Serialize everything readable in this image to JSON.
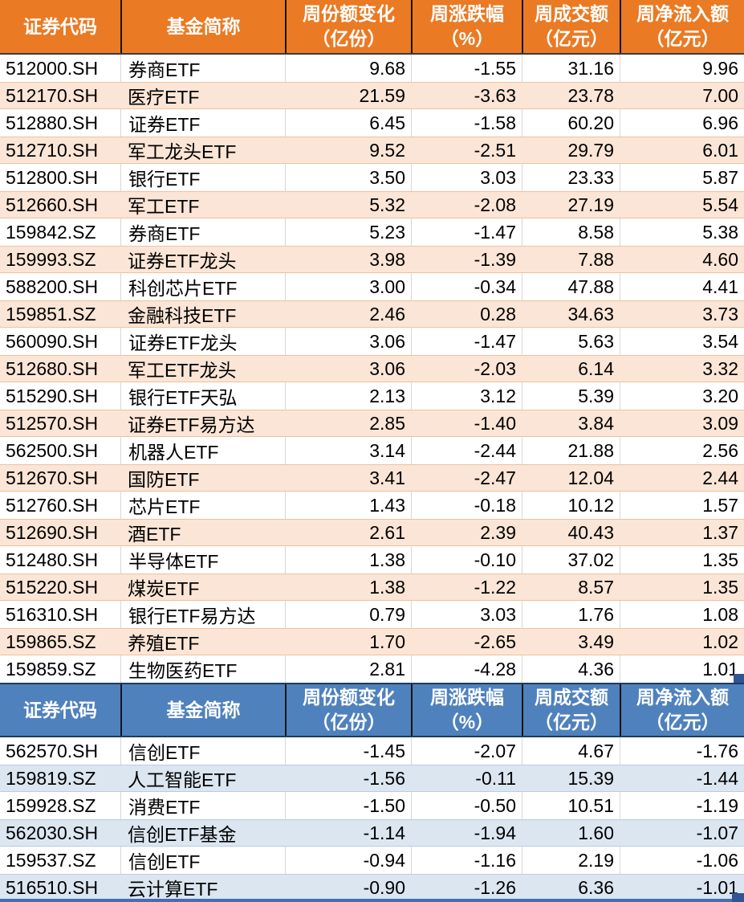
{
  "theme": {
    "orange_header_bg": "#EA7A23",
    "orange_stripe_bg": "#FBE5D6",
    "orange_line": "#F0C29A",
    "blue_header_bg": "#4F81BD",
    "blue_stripe_bg": "#DCE6F1",
    "blue_line": "#B9CBE3",
    "header_text": "#FFFFFF",
    "body_text": "#000000",
    "bottom_line": "#4070B8",
    "handle": "#2F5597"
  },
  "tables": [
    {
      "id": "weekly-net-inflow",
      "theme": "orange",
      "columns": [
        {
          "line1": "证券代码",
          "line2": ""
        },
        {
          "line1": "基金简称",
          "line2": ""
        },
        {
          "line1": "周份额变化",
          "line2": "（亿份）"
        },
        {
          "line1": "周涨跌幅",
          "line2": "（%）"
        },
        {
          "line1": "周成交额",
          "line2": "（亿元）"
        },
        {
          "line1": "周净流入额",
          "line2": "（亿元）"
        }
      ],
      "rows": [
        [
          "512000.SH",
          "券商ETF",
          "9.68",
          "-1.55",
          "31.16",
          "9.96"
        ],
        [
          "512170.SH",
          "医疗ETF",
          "21.59",
          "-3.63",
          "23.78",
          "7.00"
        ],
        [
          "512880.SH",
          "证券ETF",
          "6.45",
          "-1.58",
          "60.20",
          "6.96"
        ],
        [
          "512710.SH",
          "军工龙头ETF",
          "9.52",
          "-2.51",
          "29.79",
          "6.01"
        ],
        [
          "512800.SH",
          "银行ETF",
          "3.50",
          "3.03",
          "23.33",
          "5.87"
        ],
        [
          "512660.SH",
          "军工ETF",
          "5.32",
          "-2.08",
          "27.19",
          "5.54"
        ],
        [
          "159842.SZ",
          "券商ETF",
          "5.23",
          "-1.47",
          "8.58",
          "5.38"
        ],
        [
          "159993.SZ",
          "证券ETF龙头",
          "3.98",
          "-1.39",
          "7.88",
          "4.60"
        ],
        [
          "588200.SH",
          "科创芯片ETF",
          "3.00",
          "-0.34",
          "47.88",
          "4.41"
        ],
        [
          "159851.SZ",
          "金融科技ETF",
          "2.46",
          "0.28",
          "34.63",
          "3.73"
        ],
        [
          "560090.SH",
          "证券ETF龙头",
          "3.06",
          "-1.47",
          "5.63",
          "3.54"
        ],
        [
          "512680.SH",
          "军工ETF龙头",
          "3.06",
          "-2.03",
          "6.14",
          "3.32"
        ],
        [
          "515290.SH",
          "银行ETF天弘",
          "2.13",
          "3.12",
          "5.39",
          "3.20"
        ],
        [
          "512570.SH",
          "证券ETF易方达",
          "2.85",
          "-1.40",
          "3.84",
          "3.09"
        ],
        [
          "562500.SH",
          "机器人ETF",
          "3.14",
          "-2.44",
          "21.88",
          "2.56"
        ],
        [
          "512670.SH",
          "国防ETF",
          "3.41",
          "-2.47",
          "12.04",
          "2.44"
        ],
        [
          "512760.SH",
          "芯片ETF",
          "1.43",
          "-0.18",
          "10.12",
          "1.57"
        ],
        [
          "512690.SH",
          "酒ETF",
          "2.61",
          "2.39",
          "40.43",
          "1.37"
        ],
        [
          "512480.SH",
          "半导体ETF",
          "1.38",
          "-0.10",
          "37.02",
          "1.35"
        ],
        [
          "515220.SH",
          "煤炭ETF",
          "1.38",
          "-1.22",
          "8.57",
          "1.35"
        ],
        [
          "516310.SH",
          "银行ETF易方达",
          "0.79",
          "3.03",
          "1.76",
          "1.08"
        ],
        [
          "159865.SZ",
          "养殖ETF",
          "1.70",
          "-2.65",
          "3.49",
          "1.02"
        ],
        [
          "159859.SZ",
          "生物医药ETF",
          "2.81",
          "-4.28",
          "4.36",
          "1.01"
        ]
      ]
    },
    {
      "id": "weekly-net-outflow",
      "theme": "blue",
      "columns": [
        {
          "line1": "证券代码",
          "line2": ""
        },
        {
          "line1": "基金简称",
          "line2": ""
        },
        {
          "line1": "周份额变化",
          "line2": "（亿份）"
        },
        {
          "line1": "周涨跌幅",
          "line2": "（%）"
        },
        {
          "line1": "周成交额",
          "line2": "（亿元）"
        },
        {
          "line1": "周净流入额",
          "line2": "（亿元）"
        }
      ],
      "rows": [
        [
          "562570.SH",
          "信创ETF",
          "-1.45",
          "-2.07",
          "4.67",
          "-1.76"
        ],
        [
          "159819.SZ",
          "人工智能ETF",
          "-1.56",
          "-0.11",
          "15.39",
          "-1.44"
        ],
        [
          "159928.SZ",
          "消费ETF",
          "-1.50",
          "-0.50",
          "10.51",
          "-1.19"
        ],
        [
          "562030.SH",
          "信创ETF基金",
          "-1.14",
          "-1.94",
          "1.60",
          "-1.07"
        ],
        [
          "159537.SZ",
          "信创ETF",
          "-0.94",
          "-1.16",
          "2.19",
          "-1.06"
        ],
        [
          "516510.SH",
          "云计算ETF",
          "-0.90",
          "-1.26",
          "6.36",
          "-1.01"
        ]
      ]
    }
  ]
}
